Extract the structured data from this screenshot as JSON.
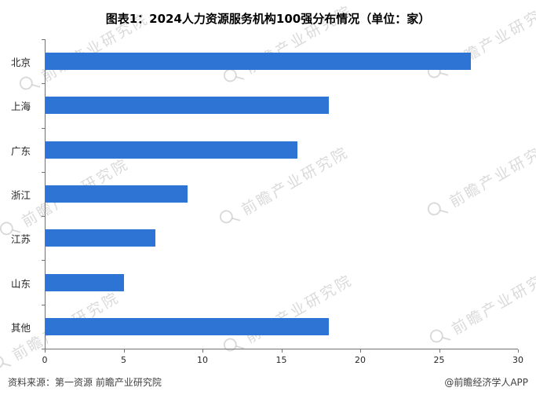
{
  "title": "图表1：2024人力资源服务机构100强分布情况（单位：家）",
  "footer": {
    "source": "资料来源：第一资源  前瞻产业研究院",
    "brand": "@前瞻经济学人APP"
  },
  "watermark": {
    "text": "前瞻产业研究院"
  },
  "colors": {
    "bar": "#2e74d5",
    "axis": "#737373",
    "title": "#000000",
    "footer_text": "#404040"
  },
  "chart_data": {
    "type": "bar",
    "orientation": "horizontal",
    "title": "图表1：2024人力资源服务机构100强分布情况（单位：家）",
    "unit": "家",
    "categories": [
      "北京",
      "上海",
      "广东",
      "浙江",
      "江苏",
      "山东",
      "其他"
    ],
    "values": [
      27,
      18,
      16,
      9,
      7,
      5,
      18
    ],
    "xlabel": "",
    "ylabel": "",
    "xlim": [
      0,
      30
    ],
    "xticks": [
      0,
      5,
      10,
      15,
      20,
      25,
      30
    ],
    "grid": false,
    "legend": false
  }
}
